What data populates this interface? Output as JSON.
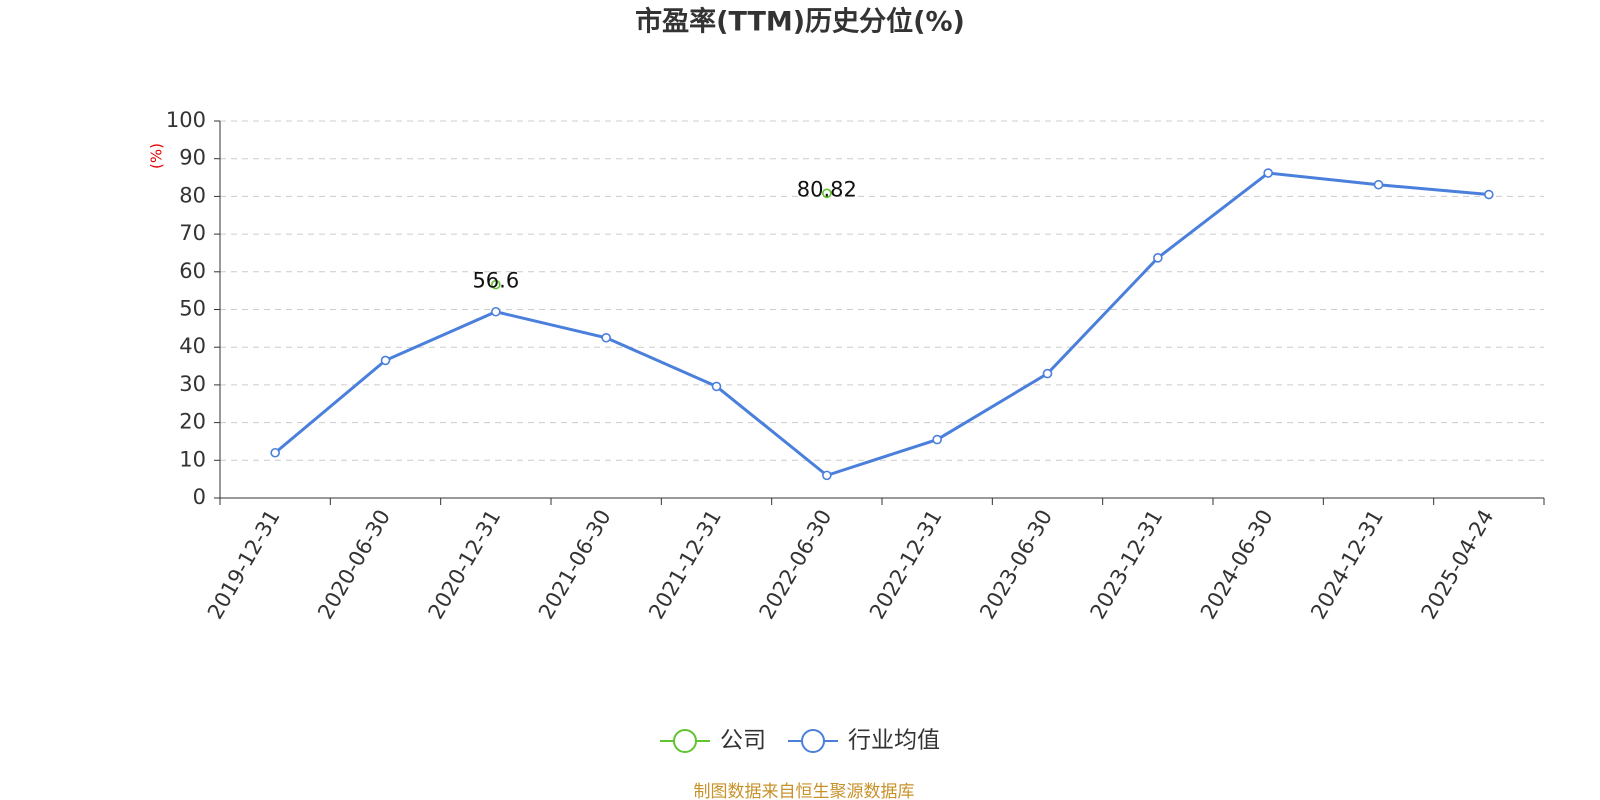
{
  "chart_data": {
    "type": "line",
    "title": "市盈率(TTM)历史分位(%)",
    "y_label": "(%)",
    "categories": [
      "2019-12-31",
      "2020-06-30",
      "2020-12-31",
      "2021-06-30",
      "2021-12-31",
      "2022-06-30",
      "2022-12-31",
      "2023-06-30",
      "2023-12-31",
      "2024-06-30",
      "2024-12-31",
      "2025-04-24"
    ],
    "series": [
      {
        "name": "公司",
        "color": "#5fc42f",
        "data_labels": true,
        "values": [
          null,
          null,
          56.6,
          null,
          null,
          80.82,
          null,
          null,
          null,
          null,
          null,
          null
        ]
      },
      {
        "name": "行业均值",
        "color": "#4a7fdc",
        "data_labels": false,
        "values": [
          12.0,
          36.5,
          49.4,
          42.5,
          29.6,
          6.0,
          15.5,
          33.0,
          63.7,
          86.2,
          83.1,
          80.5
        ]
      }
    ],
    "ylim": [
      0,
      100
    ],
    "yticks": [
      0,
      10,
      20,
      30,
      40,
      50,
      60,
      70,
      80,
      90,
      100
    ],
    "grid": true,
    "legend": "bottom",
    "source": "制图数据来自恒生聚源数据库"
  }
}
